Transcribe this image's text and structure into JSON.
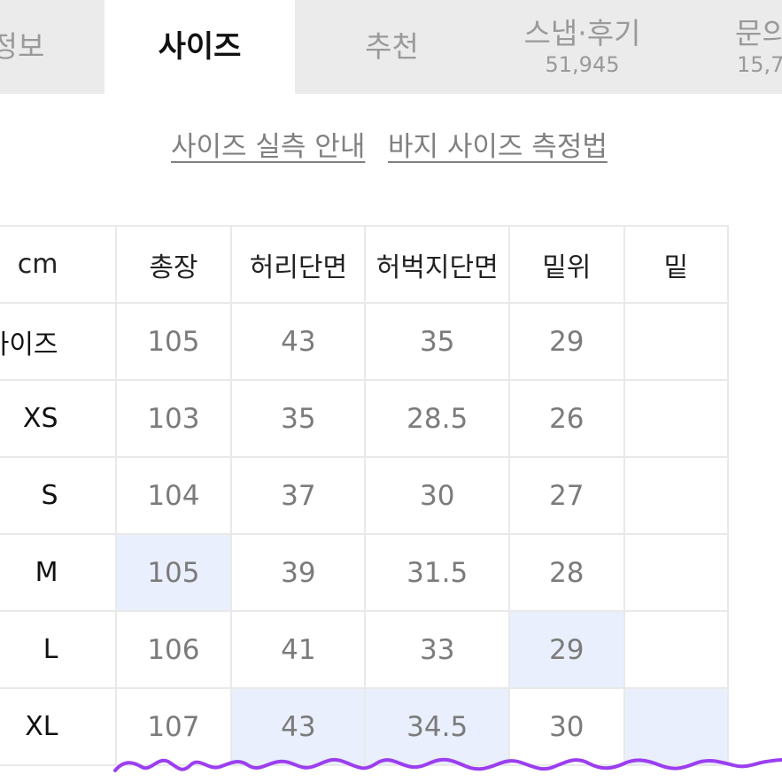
{
  "tabs": [
    {
      "label": "정보",
      "count": ""
    },
    {
      "label": "사이즈",
      "count": ""
    },
    {
      "label": "추천",
      "count": ""
    },
    {
      "label": "스냅·후기",
      "count": "51,945"
    },
    {
      "label": "문의",
      "count": "15,7"
    }
  ],
  "guide_links": {
    "size_guide": "사이즈 실측 안내",
    "measure_pants": "바지 사이즈 측정법"
  },
  "table": {
    "headers": [
      "cm",
      "총장",
      "허리단면",
      "허벅지단면",
      "밑위",
      "밑"
    ],
    "rows": [
      {
        "label": "내 사이즈",
        "values": [
          "105",
          "43",
          "35",
          "29",
          ""
        ]
      },
      {
        "label": "XS",
        "values": [
          "103",
          "35",
          "28.5",
          "26",
          ""
        ]
      },
      {
        "label": "S",
        "values": [
          "104",
          "37",
          "30",
          "27",
          ""
        ]
      },
      {
        "label": "M",
        "values": [
          "105",
          "39",
          "31.5",
          "28",
          ""
        ]
      },
      {
        "label": "L",
        "values": [
          "106",
          "41",
          "33",
          "29",
          ""
        ]
      },
      {
        "label": "XL",
        "values": [
          "107",
          "43",
          "34.5",
          "30",
          ""
        ]
      }
    ]
  },
  "colors": {
    "highlight": "#e9effc",
    "scribble": "#9b3ef0",
    "tab_bg": "#ebebeb"
  }
}
